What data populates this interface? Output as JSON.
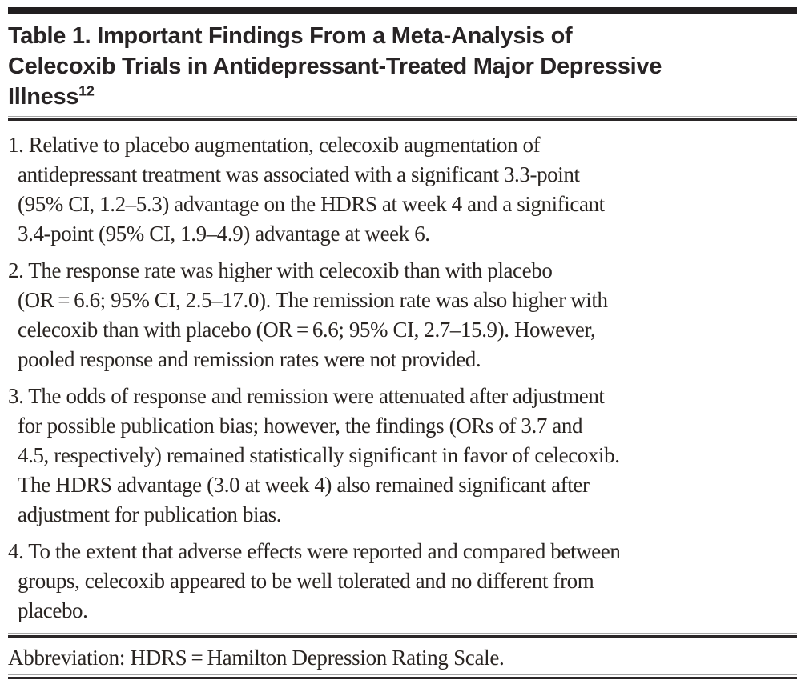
{
  "colors": {
    "bar": "#211e1f",
    "rule_dark": "#2a2627",
    "rule_light": "#a6a6a6",
    "title_text": "#282425",
    "body_text": "#2a2522"
  },
  "table": {
    "title_lines": [
      "Table 1. Important Findings From a Meta-Analysis of",
      "Celecoxib Trials in Antidepressant-Treated Major Depressive",
      "Illness"
    ],
    "title_superscript": "12",
    "items": [
      {
        "number": "1",
        "lines": [
          "1. Relative to placebo augmentation, celecoxib augmentation of",
          "antidepressant treatment was associated with a significant 3.3-point",
          "(95% CI, 1.2–5.3) advantage on the HDRS at week 4 and a significant",
          "3.4-point (95% CI, 1.9–4.9) advantage at week 6."
        ]
      },
      {
        "number": "2",
        "lines": [
          "2. The response rate was higher with celecoxib than with placebo",
          "(OR = 6.6; 95% CI, 2.5–17.0). The remission rate was also higher with",
          "celecoxib than with placebo (OR = 6.6; 95% CI, 2.7–15.9). However,",
          "pooled response and remission rates were not provided."
        ]
      },
      {
        "number": "3",
        "lines": [
          "3. The odds of response and remission were attenuated after adjustment",
          "for possible publication bias; however, the findings (ORs of 3.7 and",
          "4.5, respectively) remained statistically significant in favor of celecoxib.",
          "The HDRS advantage (3.0 at week 4) also remained significant after",
          "adjustment for publication bias."
        ]
      },
      {
        "number": "4",
        "lines": [
          "4. To the extent that adverse effects were reported and compared between",
          "groups, celecoxib appeared to be well tolerated and no different from",
          "placebo."
        ]
      }
    ],
    "footnote": "Abbreviation: HDRS = Hamilton Depression Rating Scale."
  }
}
